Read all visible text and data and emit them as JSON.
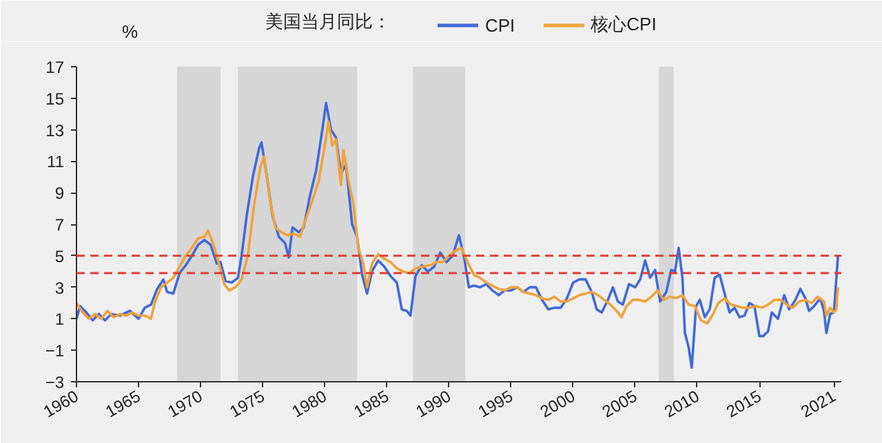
{
  "chart_data": {
    "type": "line",
    "ylabel": "%",
    "legend_title": "美国当月同比：",
    "legend": "top",
    "grid": false,
    "line_style": "solid",
    "marker": "none",
    "xlim": [
      1960,
      2021.6
    ],
    "xticks": [
      1960,
      1965,
      1970,
      1975,
      1980,
      1985,
      1990,
      1995,
      2000,
      2005,
      2010,
      2015,
      2021
    ],
    "ylim": [
      -3,
      17
    ],
    "yticks": [
      -3,
      -1,
      1,
      3,
      5,
      7,
      9,
      11,
      13,
      15,
      17
    ],
    "bands": [
      {
        "axis": "x",
        "from": 1968.1,
        "to": 1971.6,
        "color": "#d6d6d6"
      },
      {
        "axis": "x",
        "from": 1973.0,
        "to": 1982.6,
        "color": "#d6d6d6"
      },
      {
        "axis": "x",
        "from": 1987.1,
        "to": 1991.3,
        "color": "#d6d6d6"
      },
      {
        "axis": "x",
        "from": 2006.9,
        "to": 2008.1,
        "color": "#d6d6d6"
      }
    ],
    "ref_lines": [
      {
        "axis": "y",
        "value": 5,
        "color": "#e03c31",
        "line_style": "dashed"
      },
      {
        "axis": "y",
        "value": 3.9,
        "color": "#e03c31",
        "line_style": "dashed"
      }
    ],
    "series": [
      {
        "name": "CPI",
        "color": "#4169d8",
        "x": [
          1960.0,
          1960.3,
          1960.8,
          1961.3,
          1961.8,
          1962.3,
          1962.8,
          1963.5,
          1964.3,
          1965.0,
          1965.5,
          1966.0,
          1966.5,
          1967.0,
          1967.3,
          1967.8,
          1968.3,
          1968.8,
          1969.3,
          1969.8,
          1970.3,
          1970.8,
          1971.3,
          1971.6,
          1972.0,
          1972.5,
          1973.0,
          1973.3,
          1973.7,
          1974.2,
          1974.7,
          1974.9,
          1975.3,
          1975.8,
          1976.3,
          1976.8,
          1977.1,
          1977.4,
          1977.9,
          1978.3,
          1978.8,
          1979.3,
          1979.8,
          1980.1,
          1980.5,
          1980.9,
          1981.3,
          1981.7,
          1982.2,
          1982.6,
          1983.0,
          1983.4,
          1983.8,
          1984.3,
          1984.8,
          1985.3,
          1985.8,
          1986.2,
          1986.6,
          1986.9,
          1987.3,
          1987.8,
          1988.3,
          1988.8,
          1989.3,
          1989.8,
          1990.3,
          1990.8,
          1991.2,
          1991.6,
          1992.0,
          1992.5,
          1993.0,
          1993.5,
          1994.0,
          1994.5,
          1995.0,
          1995.5,
          1996.0,
          1996.5,
          1997.0,
          1997.5,
          1998.0,
          1998.5,
          1999.0,
          1999.5,
          2000.0,
          2000.5,
          2001.0,
          2001.5,
          2001.9,
          2002.3,
          2002.8,
          2003.2,
          2003.6,
          2004.0,
          2004.5,
          2005.0,
          2005.4,
          2005.8,
          2006.2,
          2006.6,
          2007.0,
          2007.5,
          2007.9,
          2008.2,
          2008.5,
          2008.8,
          2009.0,
          2009.3,
          2009.55,
          2009.9,
          2010.2,
          2010.6,
          2011.0,
          2011.4,
          2011.8,
          2012.2,
          2012.6,
          2013.0,
          2013.4,
          2013.8,
          2014.2,
          2014.6,
          2015.0,
          2015.3,
          2015.7,
          2016.0,
          2016.5,
          2017.0,
          2017.4,
          2017.9,
          2018.3,
          2018.7,
          2019.0,
          2019.4,
          2019.9,
          2020.2,
          2020.4,
          2020.7,
          2021.0,
          2021.33
        ],
        "values": [
          1.0,
          1.8,
          1.4,
          0.9,
          1.3,
          0.9,
          1.3,
          1.2,
          1.5,
          1.0,
          1.7,
          1.9,
          2.9,
          3.5,
          2.7,
          2.6,
          3.9,
          4.4,
          5.0,
          5.7,
          6.0,
          5.7,
          4.5,
          4.6,
          3.4,
          3.3,
          3.6,
          5.0,
          7.5,
          10.0,
          11.8,
          12.2,
          10.2,
          7.5,
          6.2,
          5.8,
          4.9,
          6.8,
          6.5,
          6.8,
          8.8,
          10.4,
          13.0,
          14.7,
          13.0,
          12.5,
          10.2,
          10.8,
          7.0,
          6.2,
          3.8,
          2.6,
          4.0,
          4.7,
          4.3,
          3.7,
          3.3,
          1.6,
          1.5,
          1.2,
          3.7,
          4.4,
          4.0,
          4.3,
          5.2,
          4.6,
          5.0,
          6.3,
          5.0,
          3.0,
          3.1,
          3.0,
          3.2,
          2.8,
          2.5,
          2.8,
          2.8,
          3.0,
          2.7,
          3.0,
          3.0,
          2.2,
          1.6,
          1.7,
          1.7,
          2.3,
          3.3,
          3.5,
          3.5,
          2.7,
          1.6,
          1.4,
          2.2,
          3.0,
          2.1,
          1.9,
          3.2,
          3.0,
          3.5,
          4.7,
          3.6,
          4.1,
          2.1,
          2.7,
          4.1,
          4.0,
          5.5,
          3.6,
          0.1,
          -0.8,
          -2.1,
          1.8,
          2.2,
          1.1,
          1.6,
          3.6,
          3.8,
          2.6,
          1.4,
          1.7,
          1.1,
          1.2,
          2.0,
          1.8,
          -0.1,
          -0.1,
          0.2,
          1.4,
          1.0,
          2.5,
          1.6,
          2.2,
          2.9,
          2.3,
          1.5,
          1.8,
          2.3,
          1.5,
          0.1,
          1.3,
          1.4,
          5.0
        ]
      },
      {
        "name": "核心CPI",
        "color": "#f0a23a",
        "x": [
          1960.0,
          1960.5,
          1961.0,
          1961.5,
          1962.0,
          1962.5,
          1963.0,
          1963.5,
          1964.0,
          1964.5,
          1965.0,
          1965.5,
          1966.0,
          1966.3,
          1966.8,
          1967.3,
          1967.8,
          1968.3,
          1968.8,
          1969.3,
          1969.8,
          1970.3,
          1970.6,
          1971.0,
          1971.4,
          1971.9,
          1972.3,
          1972.8,
          1973.3,
          1973.8,
          1974.3,
          1974.8,
          1975.1,
          1975.6,
          1976.0,
          1976.5,
          1977.0,
          1977.5,
          1978.0,
          1978.5,
          1979.0,
          1979.5,
          1980.0,
          1980.3,
          1980.6,
          1980.9,
          1981.3,
          1981.5,
          1981.9,
          1982.3,
          1982.7,
          1983.1,
          1983.4,
          1983.8,
          1984.3,
          1984.8,
          1985.3,
          1985.8,
          1986.3,
          1986.8,
          1987.3,
          1987.8,
          1988.5,
          1989.0,
          1989.5,
          1990.0,
          1990.5,
          1991.0,
          1991.5,
          1992.0,
          1992.5,
          1993.0,
          1993.5,
          1994.0,
          1994.5,
          1995.0,
          1995.5,
          1996.0,
          1996.5,
          1997.0,
          1997.5,
          1998.0,
          1998.5,
          1999.0,
          1999.5,
          2000.0,
          2000.5,
          2001.0,
          2001.5,
          2002.0,
          2002.5,
          2003.0,
          2003.5,
          2003.9,
          2004.3,
          2004.8,
          2005.3,
          2005.8,
          2006.3,
          2006.8,
          2007.3,
          2007.8,
          2008.3,
          2008.8,
          2009.3,
          2009.8,
          2010.3,
          2010.8,
          2011.2,
          2011.7,
          2012.2,
          2012.7,
          2013.2,
          2013.7,
          2014.2,
          2014.7,
          2015.2,
          2015.7,
          2016.2,
          2016.7,
          2017.2,
          2017.7,
          2018.2,
          2018.7,
          2019.2,
          2019.7,
          2020.2,
          2020.4,
          2020.7,
          2021.0,
          2021.2,
          2021.33
        ],
        "values": [
          2.0,
          1.4,
          1.0,
          1.3,
          1.0,
          1.5,
          1.1,
          1.3,
          1.2,
          1.4,
          1.2,
          1.2,
          1.0,
          2.0,
          3.0,
          3.3,
          3.6,
          4.3,
          5.0,
          5.5,
          6.1,
          6.2,
          6.6,
          5.8,
          4.7,
          3.2,
          2.8,
          3.0,
          3.5,
          5.0,
          8.2,
          10.6,
          11.3,
          8.5,
          6.8,
          6.5,
          6.3,
          6.4,
          6.2,
          7.4,
          8.5,
          9.7,
          12.0,
          13.5,
          12.0,
          12.4,
          9.5,
          11.7,
          9.8,
          8.3,
          5.5,
          4.5,
          3.0,
          4.5,
          5.1,
          4.8,
          4.6,
          4.2,
          4.0,
          3.9,
          4.2,
          4.3,
          4.4,
          4.6,
          4.6,
          5.0,
          5.3,
          5.5,
          4.6,
          3.8,
          3.6,
          3.3,
          3.1,
          2.9,
          2.8,
          3.0,
          3.0,
          2.7,
          2.6,
          2.5,
          2.3,
          2.2,
          2.4,
          2.1,
          2.1,
          2.3,
          2.5,
          2.6,
          2.7,
          2.5,
          2.2,
          1.9,
          1.5,
          1.1,
          1.8,
          2.2,
          2.2,
          2.1,
          2.4,
          2.8,
          2.2,
          2.4,
          2.3,
          2.5,
          1.9,
          1.8,
          0.9,
          0.7,
          1.2,
          2.0,
          2.3,
          1.9,
          1.8,
          1.7,
          1.7,
          1.8,
          1.7,
          1.9,
          2.2,
          2.2,
          1.9,
          1.7,
          2.1,
          2.2,
          2.0,
          2.4,
          2.1,
          1.2,
          1.7,
          1.4,
          1.6,
          3.0
        ]
      }
    ]
  }
}
